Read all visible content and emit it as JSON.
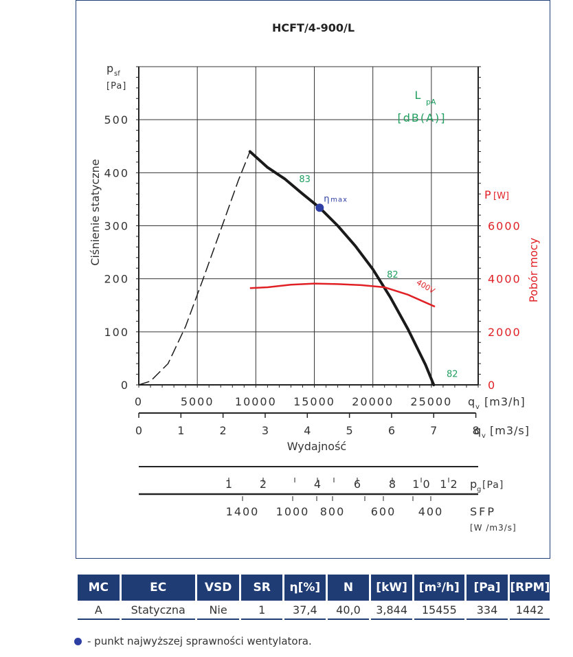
{
  "chart_data": {
    "type": "line",
    "title": "HCFT/4-900/L",
    "y_left": {
      "symbol": "p",
      "symbol_sub": "sf",
      "unit": "[Pa]",
      "label": "Ciśnienie statyczne",
      "range": [
        0,
        600
      ],
      "ticks": [
        0,
        100,
        200,
        300,
        400,
        500
      ],
      "tick_labels": [
        "0",
        "100",
        "200",
        "300",
        "400",
        "500"
      ]
    },
    "y_right": {
      "label_main": "P",
      "label_unit": "[W]",
      "axis_title": "Pobór mocy",
      "range": [
        0,
        12000
      ],
      "ticks": [
        0,
        2000,
        4000,
        6000
      ],
      "tick_labels": [
        "0",
        "2000",
        "4000",
        "6000"
      ]
    },
    "x_m3h": {
      "range": [
        0,
        29000
      ],
      "ticks": [
        0,
        5000,
        10000,
        15000,
        20000,
        25000
      ],
      "tick_labels": [
        "0",
        "5000",
        "10000",
        "15000",
        "20000",
        "25000"
      ],
      "symbol": "q",
      "symbol_sub": "v",
      "unit": "[m3/h]"
    },
    "x_m3s": {
      "ticks": [
        0,
        1,
        2,
        3,
        4,
        5,
        6,
        7,
        8
      ],
      "tick_labels": [
        "0",
        "1",
        "2",
        "3",
        "4",
        "5",
        "6",
        "7",
        "8"
      ],
      "symbol": "q",
      "symbol_sub": "v",
      "unit": "[m3/s]",
      "label": "Wydajność"
    },
    "grid": true,
    "sound_label": {
      "main": "L",
      "sub": "pA",
      "unit": "[dB(A)]"
    },
    "pressure_curve": {
      "x": [
        9500,
        11000,
        12500,
        14000,
        15455,
        17000,
        18500,
        20000,
        21500,
        23000,
        24500,
        25200
      ],
      "y": [
        440,
        410,
        388,
        360,
        334,
        300,
        262,
        218,
        165,
        105,
        38,
        0
      ]
    },
    "stall_curve": {
      "x": [
        0,
        1000,
        2500,
        4000,
        5500,
        7000,
        8500,
        9500
      ],
      "y": [
        0,
        7,
        40,
        110,
        200,
        292,
        385,
        440
      ]
    },
    "power_curve": {
      "name": "400V",
      "x": [
        9500,
        11000,
        13000,
        15000,
        17000,
        19000,
        21000,
        23000,
        25300
      ],
      "y": [
        3650,
        3680,
        3780,
        3820,
        3800,
        3760,
        3680,
        3400,
        2950
      ]
    },
    "sound_marks": [
      {
        "label": "83",
        "x": 13700,
        "y": 382
      },
      {
        "label": "82",
        "x": 21200,
        "y": 202
      },
      {
        "label": "82",
        "x": 26300,
        "y": 15
      }
    ],
    "eta_max": {
      "x": 15455,
      "y": 334,
      "label_main": "η",
      "label_sub": "max"
    },
    "pg_scale": {
      "labels": [
        "1",
        "2",
        "4",
        "6",
        "8",
        "1 0",
        "1 2"
      ],
      "unit_label": "p",
      "unit_sub": "g",
      "unit": "[Pa]"
    },
    "sfp_scale": {
      "labels": [
        "1400",
        "1000",
        "800",
        "600",
        "400"
      ],
      "label": "SFP",
      "unit": "[W /m3/s]"
    }
  },
  "table": {
    "headers": [
      "MC",
      "EC",
      "VSD",
      "SR",
      "η[%]",
      "N",
      "[kW]",
      "[m³/h]",
      "[Pa]",
      "[RPM]"
    ],
    "row": [
      "A",
      "Statyczna",
      "Nie",
      "1",
      "37,4",
      "40,0",
      "3,844",
      "15455",
      "334",
      "1442"
    ]
  },
  "legend_note": "- punkt najwyższej sprawności wentylatora.",
  "colors": {
    "navy": "#1f3c74",
    "curve": "#1a1a1a",
    "power": "#e02025",
    "sound": "#1f9e5e",
    "point": "#2e3fa3"
  }
}
